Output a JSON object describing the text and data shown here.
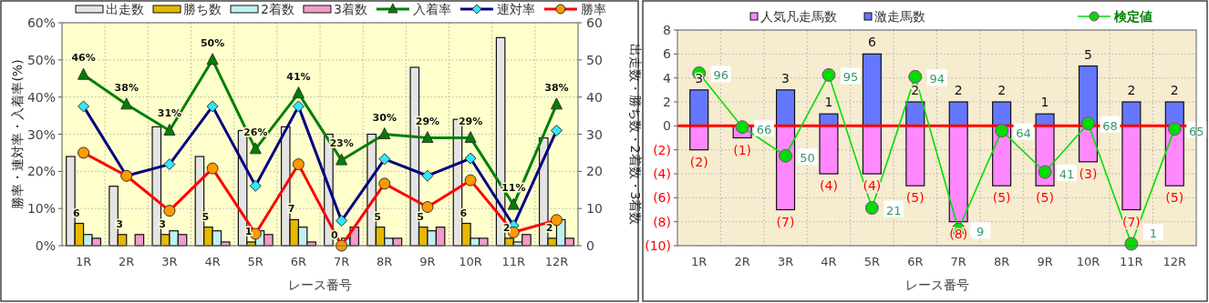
{
  "chart_data": [
    {
      "type": "bar",
      "xlabel": "レース番号",
      "ylabel": "勝率・連対率・入着率(%)",
      "y2label": "出走数・勝ち数・2着数・3着数",
      "categories": [
        "1R",
        "2R",
        "3R",
        "4R",
        "5R",
        "6R",
        "7R",
        "8R",
        "9R",
        "10R",
        "11R",
        "12R"
      ],
      "series": [
        {
          "name": "出走数",
          "color": "#e4e4e4",
          "axis": "y2",
          "values": [
            24,
            16,
            32,
            24,
            31,
            32,
            30,
            30,
            48,
            34,
            56,
            29
          ]
        },
        {
          "name": "勝ち数",
          "color": "#e6b800",
          "axis": "y2",
          "data_labels": true,
          "values": [
            6,
            3,
            3,
            5,
            1,
            7,
            0,
            5,
            5,
            6,
            2,
            2
          ]
        },
        {
          "name": "2着数",
          "color": "#bff0f0",
          "axis": "y2",
          "values": [
            3,
            0,
            4,
            4,
            4,
            5,
            2,
            2,
            4,
            2,
            1,
            7
          ]
        },
        {
          "name": "3着数",
          "color": "#f29cc8",
          "axis": "y2",
          "values": [
            2,
            3,
            3,
            1,
            3,
            1,
            5,
            2,
            5,
            2,
            3,
            2
          ]
        },
        {
          "name": "入着率",
          "type": "line",
          "color": "#008000",
          "marker": "triangle",
          "axis": "y",
          "values": [
            46,
            38,
            31,
            50,
            26,
            41,
            23,
            30,
            29,
            29,
            11,
            38
          ],
          "value_labels": [
            "46%",
            "38%",
            "31%",
            "50%",
            "26%",
            "41%",
            "23%",
            "30%",
            "29%",
            "29%",
            "11%",
            "38%"
          ]
        },
        {
          "name": "連対率",
          "type": "line",
          "color": "#000080",
          "marker": "diamond",
          "axis": "y",
          "values": [
            37.5,
            18.8,
            21.9,
            37.5,
            16.1,
            37.5,
            6.7,
            23.3,
            18.8,
            23.5,
            5.4,
            31
          ]
        },
        {
          "name": "勝率",
          "type": "line",
          "color": "#ff0000",
          "marker": "circle",
          "axis": "y",
          "values": [
            25,
            18.8,
            9.4,
            20.8,
            3.2,
            21.9,
            0,
            16.7,
            10.4,
            17.6,
            3.6,
            6.9
          ]
        }
      ],
      "ylim": [
        0,
        60
      ],
      "yticks": [
        {
          "value": 0,
          "label": "0%"
        },
        {
          "value": 10,
          "label": "10%"
        },
        {
          "value": 20,
          "label": "20%"
        },
        {
          "value": 30,
          "label": "30%"
        },
        {
          "value": 40,
          "label": "40%"
        },
        {
          "value": 50,
          "label": "50%"
        },
        {
          "value": 60,
          "label": "60%"
        }
      ],
      "y2lim": [
        0,
        60
      ],
      "y2ticks": [
        0,
        10,
        20,
        30,
        40,
        50,
        60
      ],
      "grid": true,
      "legend": "top"
    },
    {
      "type": "bar",
      "stacked": true,
      "xlabel": "レース番号",
      "categories": [
        "1R",
        "2R",
        "3R",
        "4R",
        "5R",
        "6R",
        "7R",
        "8R",
        "9R",
        "10R",
        "11R",
        "12R"
      ],
      "series": [
        {
          "name": "人気凡走馬数",
          "color": "#ff88ff",
          "axis": "y",
          "values": [
            -2,
            -1,
            -7,
            -4,
            -4,
            -5,
            -8,
            -5,
            -5,
            -3,
            -7,
            -5
          ],
          "value_labels": [
            "(2)",
            "(1)",
            "(7)",
            "(4)",
            "(4)",
            "(5)",
            "(8)",
            "(5)",
            "(5)",
            "(3)",
            "(7)",
            "(5)"
          ]
        },
        {
          "name": "激走馬数",
          "color": "#6677ff",
          "axis": "y",
          "values": [
            3,
            0,
            3,
            1,
            6,
            2,
            2,
            2,
            1,
            5,
            2,
            2
          ],
          "value_labels": [
            "3",
            null,
            "3",
            "1",
            "6",
            "2",
            "2",
            "2",
            "1",
            "5",
            "2",
            "2"
          ]
        },
        {
          "name": "検定値",
          "type": "line",
          "color": "#00dd00",
          "marker": "circle",
          "axis": "y2",
          "data_labels": true,
          "values": [
            96,
            66,
            50,
            95,
            21,
            94,
            9,
            64,
            41,
            68,
            1,
            65
          ]
        }
      ],
      "ylim": [
        -10,
        8
      ],
      "yticks": [
        {
          "value": -10,
          "label": "(10)"
        },
        {
          "value": -8,
          "label": "(8)"
        },
        {
          "value": -6,
          "label": "(6)"
        },
        {
          "value": -4,
          "label": "(4)"
        },
        {
          "value": -2,
          "label": "(2)"
        },
        0,
        2,
        4,
        6,
        8
      ],
      "y2lim": [
        0,
        120
      ],
      "ref_lines": [
        {
          "axis": "y",
          "value": 0,
          "color": "#ff0000"
        }
      ],
      "grid": true,
      "legend": "top"
    }
  ]
}
